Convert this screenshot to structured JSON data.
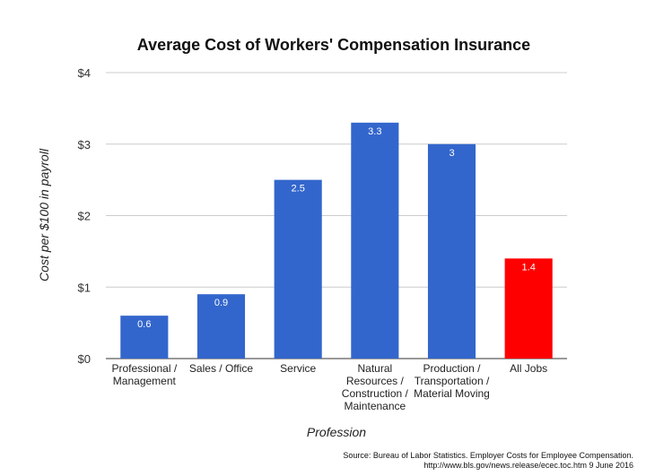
{
  "chart_data": {
    "type": "bar",
    "title": "Average Cost of Workers' Compensation Insurance",
    "xlabel": "Profession",
    "ylabel": "Cost per $100 in payroll",
    "ylim": [
      0,
      4
    ],
    "yticks": [
      "$0",
      "$1",
      "$2",
      "$3",
      "$4"
    ],
    "grid": true,
    "categories": [
      [
        "Professional /",
        "Management"
      ],
      [
        "Sales / Office"
      ],
      [
        "Service"
      ],
      [
        "Natural",
        "Resources /",
        "Construction /",
        "Maintenance"
      ],
      [
        "Production /",
        "Transportation /",
        "Material Moving"
      ],
      [
        "All Jobs"
      ]
    ],
    "values": [
      0.6,
      0.9,
      2.5,
      3.3,
      3,
      1.4
    ],
    "data_labels": [
      "0.6",
      "0.9",
      "2.5",
      "3.3",
      "3",
      "1.4"
    ],
    "colors": [
      "#3366cc",
      "#3366cc",
      "#3366cc",
      "#3366cc",
      "#3366cc",
      "#ff0000"
    ]
  },
  "source": {
    "line1": "Source: Bureau of Labor Statistics. Employer Costs for Employee Compensation.",
    "line2": "http://www.bls.gov/news.release/ecec.toc.htm 9 June 2016"
  }
}
